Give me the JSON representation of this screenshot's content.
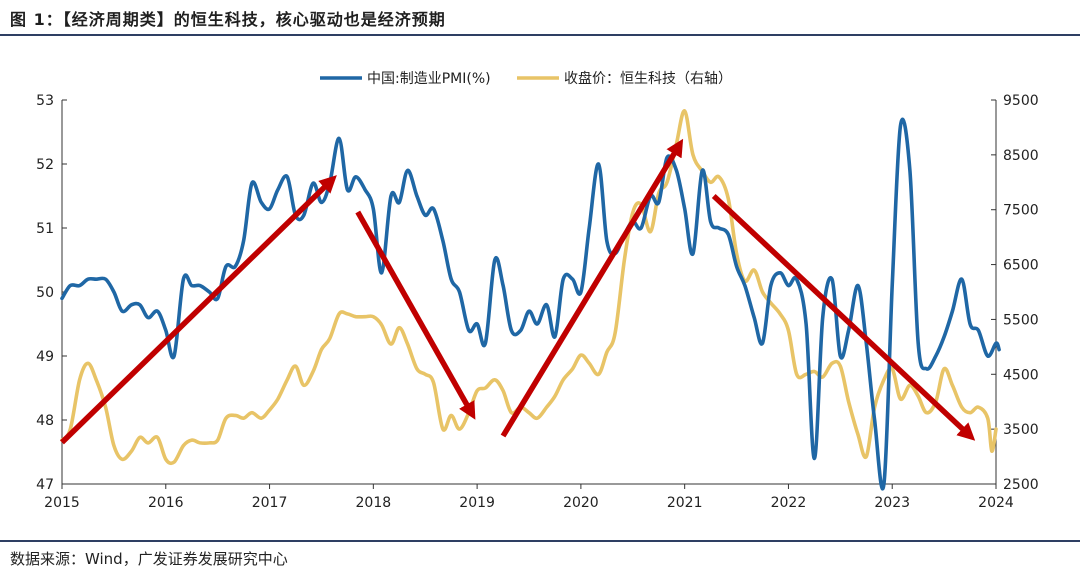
{
  "header": {
    "title": "图 1：【经济周期类】的恒生科技，核心驱动也是经济预期"
  },
  "footer": {
    "source": "数据来源：Wind，广发证券发展研究中心"
  },
  "colors": {
    "pmi": "#1f67a5",
    "hstech": "#e8c467",
    "arrow": "#c00000",
    "rule": "#2e3f63"
  },
  "chart_data": {
    "type": "line",
    "title": "",
    "legend_position": "top-center",
    "grid": false,
    "x_ticks": [
      "2015",
      "2016",
      "2017",
      "2018",
      "2019",
      "2020",
      "2021",
      "2022",
      "2023",
      "2024"
    ],
    "xlim": [
      2015.0,
      2024.0
    ],
    "y_left": {
      "ylim": [
        47,
        53
      ],
      "ticks": [
        "47",
        "48",
        "49",
        "50",
        "51",
        "52",
        "53"
      ]
    },
    "y_right": {
      "ylim": [
        2500,
        9500
      ],
      "ticks": [
        "2500",
        "3500",
        "4500",
        "5500",
        "6500",
        "7500",
        "8500",
        "9500"
      ]
    },
    "series": [
      {
        "name": "中国:制造业PMI(%)",
        "axis": "left",
        "points": [
          [
            2015.0,
            49.9
          ],
          [
            2015.08,
            50.1
          ],
          [
            2015.17,
            50.1
          ],
          [
            2015.25,
            50.2
          ],
          [
            2015.33,
            50.2
          ],
          [
            2015.42,
            50.2
          ],
          [
            2015.5,
            50.0
          ],
          [
            2015.58,
            49.7
          ],
          [
            2015.67,
            49.8
          ],
          [
            2015.75,
            49.8
          ],
          [
            2015.83,
            49.6
          ],
          [
            2015.92,
            49.7
          ],
          [
            2016.0,
            49.4
          ],
          [
            2016.08,
            49.0
          ],
          [
            2016.17,
            50.2
          ],
          [
            2016.25,
            50.1
          ],
          [
            2016.33,
            50.1
          ],
          [
            2016.42,
            50.0
          ],
          [
            2016.5,
            49.9
          ],
          [
            2016.58,
            50.4
          ],
          [
            2016.67,
            50.4
          ],
          [
            2016.75,
            50.8
          ],
          [
            2016.83,
            51.7
          ],
          [
            2016.92,
            51.4
          ],
          [
            2017.0,
            51.3
          ],
          [
            2017.08,
            51.6
          ],
          [
            2017.17,
            51.8
          ],
          [
            2017.25,
            51.2
          ],
          [
            2017.33,
            51.2
          ],
          [
            2017.42,
            51.7
          ],
          [
            2017.5,
            51.4
          ],
          [
            2017.58,
            51.7
          ],
          [
            2017.67,
            52.4
          ],
          [
            2017.75,
            51.6
          ],
          [
            2017.83,
            51.8
          ],
          [
            2017.92,
            51.6
          ],
          [
            2018.0,
            51.3
          ],
          [
            2018.08,
            50.3
          ],
          [
            2018.17,
            51.5
          ],
          [
            2018.25,
            51.4
          ],
          [
            2018.33,
            51.9
          ],
          [
            2018.42,
            51.5
          ],
          [
            2018.5,
            51.2
          ],
          [
            2018.58,
            51.3
          ],
          [
            2018.67,
            50.8
          ],
          [
            2018.75,
            50.2
          ],
          [
            2018.83,
            50.0
          ],
          [
            2018.92,
            49.4
          ],
          [
            2019.0,
            49.5
          ],
          [
            2019.08,
            49.2
          ],
          [
            2019.17,
            50.5
          ],
          [
            2019.25,
            50.1
          ],
          [
            2019.33,
            49.4
          ],
          [
            2019.42,
            49.4
          ],
          [
            2019.5,
            49.7
          ],
          [
            2019.58,
            49.5
          ],
          [
            2019.67,
            49.8
          ],
          [
            2019.75,
            49.3
          ],
          [
            2019.83,
            50.2
          ],
          [
            2019.92,
            50.2
          ],
          [
            2020.0,
            50.0
          ],
          [
            2020.08,
            51.0
          ],
          [
            2020.17,
            52.0
          ],
          [
            2020.25,
            50.8
          ],
          [
            2020.33,
            50.6
          ],
          [
            2020.42,
            50.9
          ],
          [
            2020.5,
            51.1
          ],
          [
            2020.58,
            51.0
          ],
          [
            2020.67,
            51.5
          ],
          [
            2020.75,
            51.4
          ],
          [
            2020.83,
            52.1
          ],
          [
            2020.92,
            51.9
          ],
          [
            2021.0,
            51.3
          ],
          [
            2021.08,
            50.6
          ],
          [
            2021.17,
            51.9
          ],
          [
            2021.25,
            51.1
          ],
          [
            2021.33,
            51.0
          ],
          [
            2021.42,
            50.9
          ],
          [
            2021.5,
            50.4
          ],
          [
            2021.58,
            50.1
          ],
          [
            2021.67,
            49.6
          ],
          [
            2021.75,
            49.2
          ],
          [
            2021.83,
            50.1
          ],
          [
            2021.92,
            50.3
          ],
          [
            2022.0,
            50.1
          ],
          [
            2022.08,
            50.2
          ],
          [
            2022.17,
            49.5
          ],
          [
            2022.25,
            47.4
          ],
          [
            2022.33,
            49.6
          ],
          [
            2022.42,
            50.2
          ],
          [
            2022.5,
            49.0
          ],
          [
            2022.58,
            49.4
          ],
          [
            2022.67,
            50.1
          ],
          [
            2022.75,
            49.2
          ],
          [
            2022.83,
            48.0
          ],
          [
            2022.92,
            47.0
          ],
          [
            2023.0,
            50.1
          ],
          [
            2023.08,
            52.6
          ],
          [
            2023.17,
            51.9
          ],
          [
            2023.25,
            49.2
          ],
          [
            2023.33,
            48.8
          ],
          [
            2023.42,
            49.0
          ],
          [
            2023.5,
            49.3
          ],
          [
            2023.58,
            49.7
          ],
          [
            2023.67,
            50.2
          ],
          [
            2023.75,
            49.5
          ],
          [
            2023.83,
            49.4
          ],
          [
            2023.92,
            49.0
          ],
          [
            2024.0,
            49.2
          ],
          [
            2024.03,
            49.1
          ]
        ]
      },
      {
        "name": "收盘价：恒生科技（右轴）",
        "axis": "right",
        "points": [
          [
            2015.0,
            3300
          ],
          [
            2015.08,
            3500
          ],
          [
            2015.17,
            4400
          ],
          [
            2015.25,
            4700
          ],
          [
            2015.33,
            4400
          ],
          [
            2015.42,
            3900
          ],
          [
            2015.5,
            3200
          ],
          [
            2015.58,
            2950
          ],
          [
            2015.67,
            3100
          ],
          [
            2015.75,
            3350
          ],
          [
            2015.83,
            3250
          ],
          [
            2015.92,
            3350
          ],
          [
            2016.0,
            2950
          ],
          [
            2016.08,
            2900
          ],
          [
            2016.17,
            3200
          ],
          [
            2016.25,
            3300
          ],
          [
            2016.33,
            3250
          ],
          [
            2016.42,
            3250
          ],
          [
            2016.5,
            3300
          ],
          [
            2016.58,
            3700
          ],
          [
            2016.67,
            3750
          ],
          [
            2016.75,
            3700
          ],
          [
            2016.83,
            3800
          ],
          [
            2016.92,
            3700
          ],
          [
            2017.0,
            3850
          ],
          [
            2017.08,
            4050
          ],
          [
            2017.17,
            4400
          ],
          [
            2017.25,
            4650
          ],
          [
            2017.33,
            4300
          ],
          [
            2017.42,
            4550
          ],
          [
            2017.5,
            4950
          ],
          [
            2017.58,
            5150
          ],
          [
            2017.67,
            5600
          ],
          [
            2017.75,
            5600
          ],
          [
            2017.83,
            5550
          ],
          [
            2017.92,
            5550
          ],
          [
            2018.0,
            5550
          ],
          [
            2018.08,
            5400
          ],
          [
            2018.17,
            5050
          ],
          [
            2018.25,
            5350
          ],
          [
            2018.33,
            5050
          ],
          [
            2018.42,
            4600
          ],
          [
            2018.5,
            4500
          ],
          [
            2018.58,
            4350
          ],
          [
            2018.67,
            3500
          ],
          [
            2018.75,
            3750
          ],
          [
            2018.83,
            3500
          ],
          [
            2018.92,
            3800
          ],
          [
            2019.0,
            4200
          ],
          [
            2019.08,
            4250
          ],
          [
            2019.17,
            4400
          ],
          [
            2019.25,
            4200
          ],
          [
            2019.33,
            3800
          ],
          [
            2019.42,
            3900
          ],
          [
            2019.5,
            3800
          ],
          [
            2019.58,
            3700
          ],
          [
            2019.67,
            3900
          ],
          [
            2019.75,
            4100
          ],
          [
            2019.83,
            4400
          ],
          [
            2019.92,
            4600
          ],
          [
            2020.0,
            4850
          ],
          [
            2020.08,
            4700
          ],
          [
            2020.17,
            4500
          ],
          [
            2020.25,
            4900
          ],
          [
            2020.33,
            5250
          ],
          [
            2020.42,
            6600
          ],
          [
            2020.5,
            7450
          ],
          [
            2020.58,
            7600
          ],
          [
            2020.67,
            7100
          ],
          [
            2020.75,
            7800
          ],
          [
            2020.83,
            8000
          ],
          [
            2020.92,
            8700
          ],
          [
            2021.0,
            9300
          ],
          [
            2021.08,
            8500
          ],
          [
            2021.17,
            8200
          ],
          [
            2021.25,
            8000
          ],
          [
            2021.33,
            8100
          ],
          [
            2021.42,
            7700
          ],
          [
            2021.5,
            6700
          ],
          [
            2021.58,
            6200
          ],
          [
            2021.67,
            6400
          ],
          [
            2021.75,
            6000
          ],
          [
            2021.83,
            5800
          ],
          [
            2021.92,
            5600
          ],
          [
            2022.0,
            5300
          ],
          [
            2022.08,
            4500
          ],
          [
            2022.17,
            4500
          ],
          [
            2022.25,
            4550
          ],
          [
            2022.33,
            4450
          ],
          [
            2022.42,
            4700
          ],
          [
            2022.5,
            4650
          ],
          [
            2022.58,
            4000
          ],
          [
            2022.67,
            3400
          ],
          [
            2022.75,
            3000
          ],
          [
            2022.83,
            3900
          ],
          [
            2022.92,
            4400
          ],
          [
            2023.0,
            4600
          ],
          [
            2023.08,
            4050
          ],
          [
            2023.17,
            4300
          ],
          [
            2023.25,
            4100
          ],
          [
            2023.33,
            3800
          ],
          [
            2023.42,
            4000
          ],
          [
            2023.5,
            4600
          ],
          [
            2023.58,
            4300
          ],
          [
            2023.67,
            3900
          ],
          [
            2023.75,
            3800
          ],
          [
            2023.83,
            3900
          ],
          [
            2023.92,
            3700
          ],
          [
            2023.96,
            3100
          ],
          [
            2024.0,
            3500
          ]
        ]
      }
    ],
    "annotations": [
      {
        "type": "arrow",
        "from": [
          2015.0,
          47.65
        ],
        "to": [
          2017.6,
          51.75
        ]
      },
      {
        "type": "arrow",
        "from": [
          2017.85,
          51.25
        ],
        "to": [
          2018.95,
          48.1
        ]
      },
      {
        "type": "arrow",
        "from": [
          2019.25,
          47.75
        ],
        "to": [
          2020.95,
          52.3
        ]
      },
      {
        "type": "arrow",
        "from": [
          2021.28,
          51.5
        ],
        "to": [
          2023.75,
          47.75
        ]
      }
    ]
  }
}
